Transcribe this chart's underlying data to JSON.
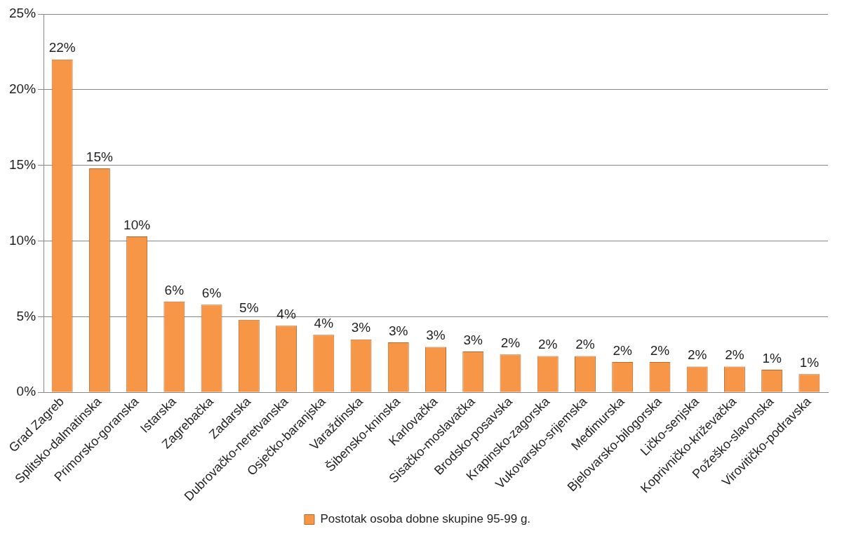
{
  "chart_data": {
    "type": "bar",
    "categories": [
      "Grad Zagreb",
      "Splitsko-dalmatinska",
      "Primorsko-goranska",
      "Istarska",
      "Zagrebačka",
      "Zadarska",
      "Dubrovačko-neretvanska",
      "Osječko-baranjska",
      "Varaždinska",
      "Šibensko-kninska",
      "Karlovačka",
      "Sisačko-moslavačka",
      "Brodsko-posavska",
      "Krapinsko-zagorska",
      "Vukovarsko-srijemska",
      "Međimurska",
      "Bjelovarsko-bilogorska",
      "Ličko-senjska",
      "Koprivničko-križevačka",
      "Požeško-slavonska",
      "Virovitičko-podravska"
    ],
    "series": [
      {
        "name": "Postotak osoba dobne skupine 95-99 g.",
        "color": "#f79646",
        "values": [
          22.0,
          14.8,
          10.3,
          6.0,
          5.8,
          4.8,
          4.4,
          3.8,
          3.5,
          3.3,
          3.0,
          2.7,
          2.5,
          2.4,
          2.4,
          2.0,
          2.0,
          1.7,
          1.7,
          1.5,
          1.2
        ],
        "value_labels": [
          "22%",
          "15%",
          "10%",
          "6%",
          "6%",
          "5%",
          "4%",
          "4%",
          "3%",
          "3%",
          "3%",
          "3%",
          "2%",
          "2%",
          "2%",
          "2%",
          "2%",
          "2%",
          "2%",
          "1%",
          "1%"
        ]
      }
    ],
    "ylim": [
      0,
      25
    ],
    "yticks": [
      {
        "value": 0,
        "label": "0%"
      },
      {
        "value": 5,
        "label": "5%"
      },
      {
        "value": 10,
        "label": "10%"
      },
      {
        "value": 15,
        "label": "15%"
      },
      {
        "value": 20,
        "label": "20%"
      },
      {
        "value": 25,
        "label": "25%"
      }
    ],
    "grid": "y",
    "legend": "bottom"
  }
}
